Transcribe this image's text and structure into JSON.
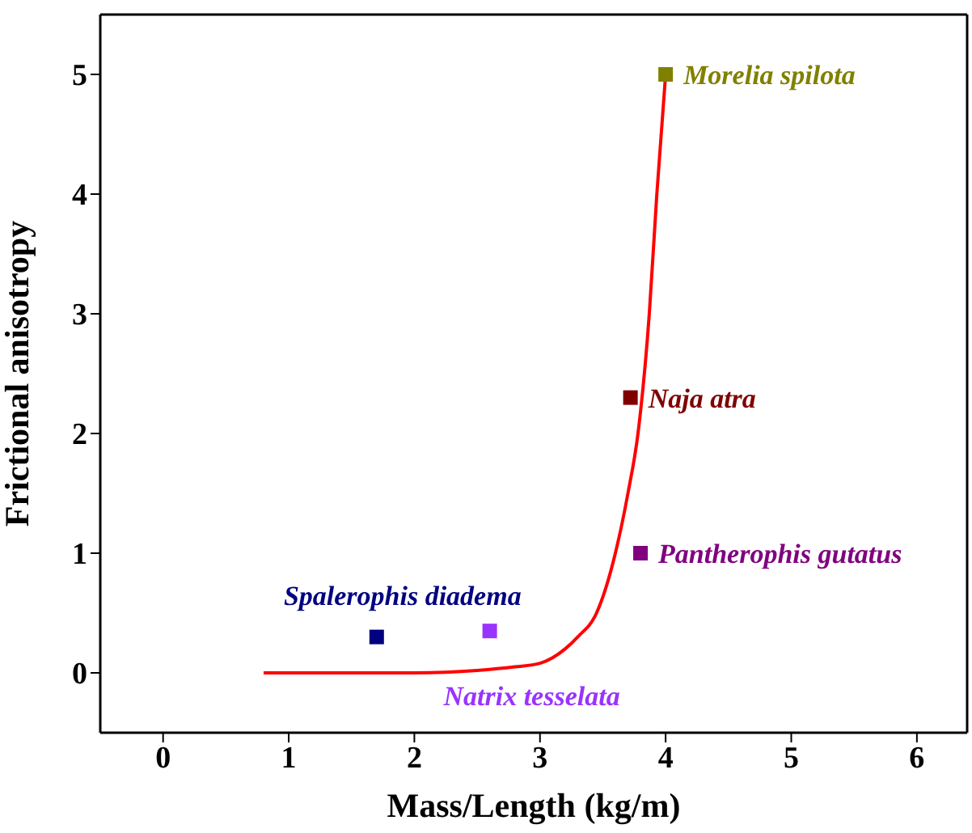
{
  "chart_data": {
    "type": "scatter",
    "xlabel": "Mass/Length (kg/m)",
    "ylabel": "Frictional anisotropy",
    "xlim": [
      -0.5,
      6.4
    ],
    "ylim": [
      -0.5,
      5.5
    ],
    "xticks": [
      0,
      1,
      2,
      3,
      4,
      5,
      6
    ],
    "yticks": [
      0,
      1,
      2,
      3,
      4,
      5
    ],
    "marker": "square",
    "line_style": "solid",
    "series": [
      {
        "type": "line",
        "marker": "none",
        "color": "#ff0000",
        "x": [
          0.8,
          2,
          2.5,
          2.8,
          3,
          3.2,
          3.3,
          3.45,
          3.6,
          3.7,
          3.78,
          3.87,
          3.93,
          4.0
        ],
        "values": [
          0,
          0,
          0.02,
          0.05,
          0.08,
          0.2,
          0.3,
          0.5,
          1.0,
          1.5,
          2.0,
          3.0,
          4.0,
          5.0
        ]
      },
      {
        "name": "Morelia spilota",
        "color": "#808000",
        "x": [
          4.0
        ],
        "values": [
          5.0
        ]
      },
      {
        "name": "Naja atra",
        "color": "#800000",
        "x": [
          3.72
        ],
        "values": [
          2.3
        ]
      },
      {
        "name": "Pantherophis gutatus",
        "color": "#800080",
        "x": [
          3.8
        ],
        "values": [
          1.0
        ]
      },
      {
        "name": "Spalerophis diadema",
        "color": "#000080",
        "x": [
          1.7
        ],
        "values": [
          0.3
        ]
      },
      {
        "name": "Natrix tesselata",
        "color": "#9933ff",
        "x": [
          2.6
        ],
        "values": [
          0.35
        ]
      }
    ]
  }
}
